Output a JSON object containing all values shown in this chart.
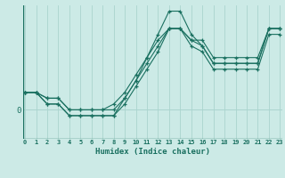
{
  "xlabel": "Humidex (Indice chaleur)",
  "bg_color": "#cceae6",
  "line_color": "#1a7060",
  "grid_color": "#aad4ce",
  "ylim": [
    -5,
    18
  ],
  "xlim": [
    -0.2,
    23.2
  ],
  "series": [
    [
      3,
      3,
      1,
      1,
      -1,
      -1,
      -1,
      -1,
      -1,
      1,
      4,
      7,
      10,
      14,
      14,
      11,
      10,
      7,
      7,
      7,
      7,
      7,
      13,
      13
    ],
    [
      3,
      3,
      1,
      1,
      -1,
      -1,
      -1,
      -1,
      -1,
      2,
      5,
      9,
      13,
      17,
      17,
      13,
      11,
      8,
      8,
      8,
      8,
      8,
      14,
      14
    ],
    [
      3,
      3,
      2,
      2,
      0,
      0,
      0,
      0,
      0,
      2,
      5,
      8,
      11,
      14,
      14,
      12,
      11,
      8,
      8,
      8,
      8,
      8,
      14,
      14
    ],
    [
      3,
      3,
      2,
      2,
      0,
      0,
      0,
      0,
      1,
      3,
      6,
      9,
      12,
      14,
      14,
      12,
      12,
      9,
      9,
      9,
      9,
      9,
      14,
      14
    ]
  ],
  "x_ticks": [
    0,
    1,
    2,
    3,
    4,
    5,
    6,
    7,
    8,
    9,
    10,
    11,
    12,
    13,
    14,
    15,
    16,
    17,
    18,
    19,
    20,
    21,
    22,
    23
  ],
  "figsize": [
    3.2,
    2.0
  ],
  "dpi": 100
}
